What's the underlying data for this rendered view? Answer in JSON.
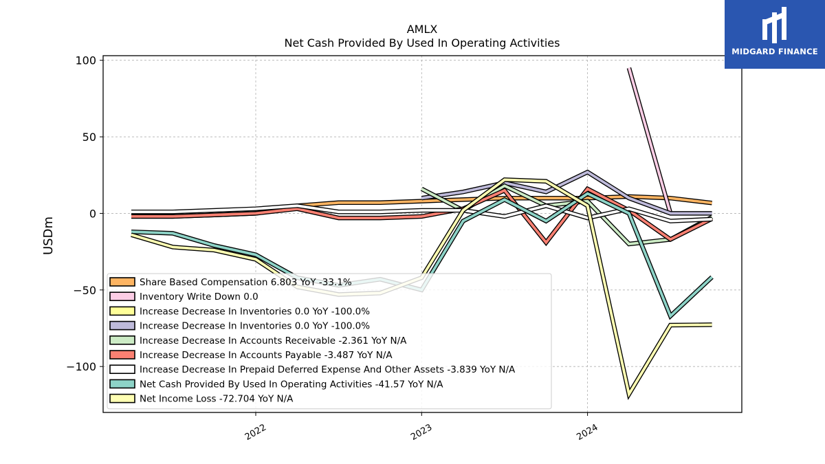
{
  "brand": {
    "name": "MIDGARD FINANCE",
    "bg": "#2a56b0"
  },
  "chart_data": {
    "type": "line",
    "title": "AMLX",
    "subtitle": "Net Cash Provided By Used In Operating Activities",
    "ylabel": "USDm",
    "xlabel": "",
    "ylim": [
      -130,
      103
    ],
    "xlim": [
      2021.08,
      2024.93
    ],
    "yticks": [
      100,
      50,
      0,
      -50,
      -100
    ],
    "ytick_labels": [
      "100",
      "50",
      "0",
      "−50",
      "−100"
    ],
    "xticks": [
      2022,
      2023,
      2024
    ],
    "xtick_labels": [
      "2022",
      "2023",
      "2024"
    ],
    "grid": true,
    "legend_position": "lower-left",
    "series": [
      {
        "name": "Share Based Compensation",
        "legend": "Share Based Compensation  6.803 YoY -33.1%",
        "color": "#fdb462",
        "x": [
          2021.25,
          2021.5,
          2021.75,
          2022.0,
          2022.25,
          2022.5,
          2022.75,
          2023.0,
          2023.25,
          2023.5,
          2023.75,
          2024.0,
          2024.25,
          2024.5,
          2024.75
        ],
        "y": [
          -2,
          -2,
          -1,
          0,
          5,
          7,
          7,
          8,
          9,
          10,
          10,
          10,
          11,
          10,
          6.8
        ]
      },
      {
        "name": "Inventory Write Down",
        "legend": "Inventory Write Down  0.0",
        "color": "#fccde5",
        "x": [
          2024.25,
          2024.5
        ],
        "y": [
          95,
          0
        ]
      },
      {
        "name": "Increase Decrease In Inventories",
        "legend": "Increase Decrease In Inventories  0.0 YoY -100.0%",
        "color": "#ffff99",
        "x": [
          2023.0,
          2023.25
        ],
        "y": [
          null,
          null
        ]
      },
      {
        "name": "Increase Decrease In Inventories",
        "legend": "Increase Decrease In Inventories  0.0 YoY -100.0%",
        "color": "#bebada",
        "x": [
          2023.0,
          2023.25,
          2023.5,
          2023.75,
          2024.0,
          2024.25,
          2024.5,
          2024.75
        ],
        "y": [
          10,
          14,
          20,
          14,
          27,
          10,
          0,
          0
        ]
      },
      {
        "name": "Increase Decrease In Accounts Receivable",
        "legend": "Increase Decrease In Accounts Receivable  -2.361 YoY N/A",
        "color": "#ccebc5",
        "x": [
          2023.0,
          2023.25,
          2023.5,
          2023.75,
          2024.0,
          2024.25,
          2024.5,
          2024.75
        ],
        "y": [
          16,
          2,
          18,
          5,
          8,
          -20,
          -17,
          -2.4
        ]
      },
      {
        "name": "Increase Decrease In Accounts Payable",
        "legend": "Increase Decrease In Accounts Payable  -3.487 YoY N/A",
        "color": "#fb8072",
        "x": [
          2021.25,
          2021.5,
          2021.75,
          2022.0,
          2022.25,
          2022.5,
          2022.75,
          2023.0,
          2023.25,
          2023.5,
          2023.75,
          2024.0,
          2024.25,
          2024.5,
          2024.75
        ],
        "y": [
          -2,
          -2,
          -1,
          0,
          3,
          -3,
          -3,
          -2,
          3,
          15,
          -19,
          16,
          2,
          -17,
          -3.5
        ]
      },
      {
        "name": "Increase Decrease In Prepaid Deferred Expense And Other Assets",
        "legend": "Increase Decrease In Prepaid Deferred Expense And Other Assets  -3.839 YoY N/A",
        "color": "#ffffff",
        "x": [
          2021.25,
          2021.5,
          2021.75,
          2022.0,
          2022.25,
          2022.5,
          2022.75,
          2023.0,
          2023.25,
          2023.5,
          2023.75,
          2024.0,
          2024.25,
          2024.5,
          2024.75
        ],
        "y": [
          1,
          1,
          2,
          3,
          5,
          1,
          1,
          2,
          2,
          -2,
          5,
          -3,
          3,
          -5,
          -3.8
        ]
      },
      {
        "name": "Net Cash Provided By Used In Operating Activities",
        "legend": "Net Cash Provided By Used In Operating Activities  -41.57 YoY N/A",
        "color": "#8dd3c7",
        "x": [
          2021.25,
          2021.5,
          2021.75,
          2022.0,
          2022.25,
          2022.5,
          2022.75,
          2023.0,
          2023.25,
          2023.5,
          2023.75,
          2024.0,
          2024.25,
          2024.5,
          2024.75
        ],
        "y": [
          -12,
          -13,
          -21,
          -27,
          -42,
          -47,
          -43,
          -50,
          -5,
          9,
          -5,
          13,
          0,
          -67,
          -41.6
        ]
      },
      {
        "name": "Net Income Loss",
        "legend": "Net Income Loss  -72.704 YoY N/A",
        "color": "#ffffb3",
        "x": [
          2021.25,
          2021.5,
          2021.75,
          2022.0,
          2022.25,
          2022.5,
          2022.75,
          2023.0,
          2023.25,
          2023.5,
          2023.75,
          2024.0,
          2024.25,
          2024.5,
          2024.75
        ],
        "y": [
          -14,
          -22,
          -24,
          -30,
          -48,
          -53,
          -52,
          -42,
          2,
          22,
          21,
          5,
          -118,
          -73,
          -72.7
        ]
      }
    ]
  }
}
